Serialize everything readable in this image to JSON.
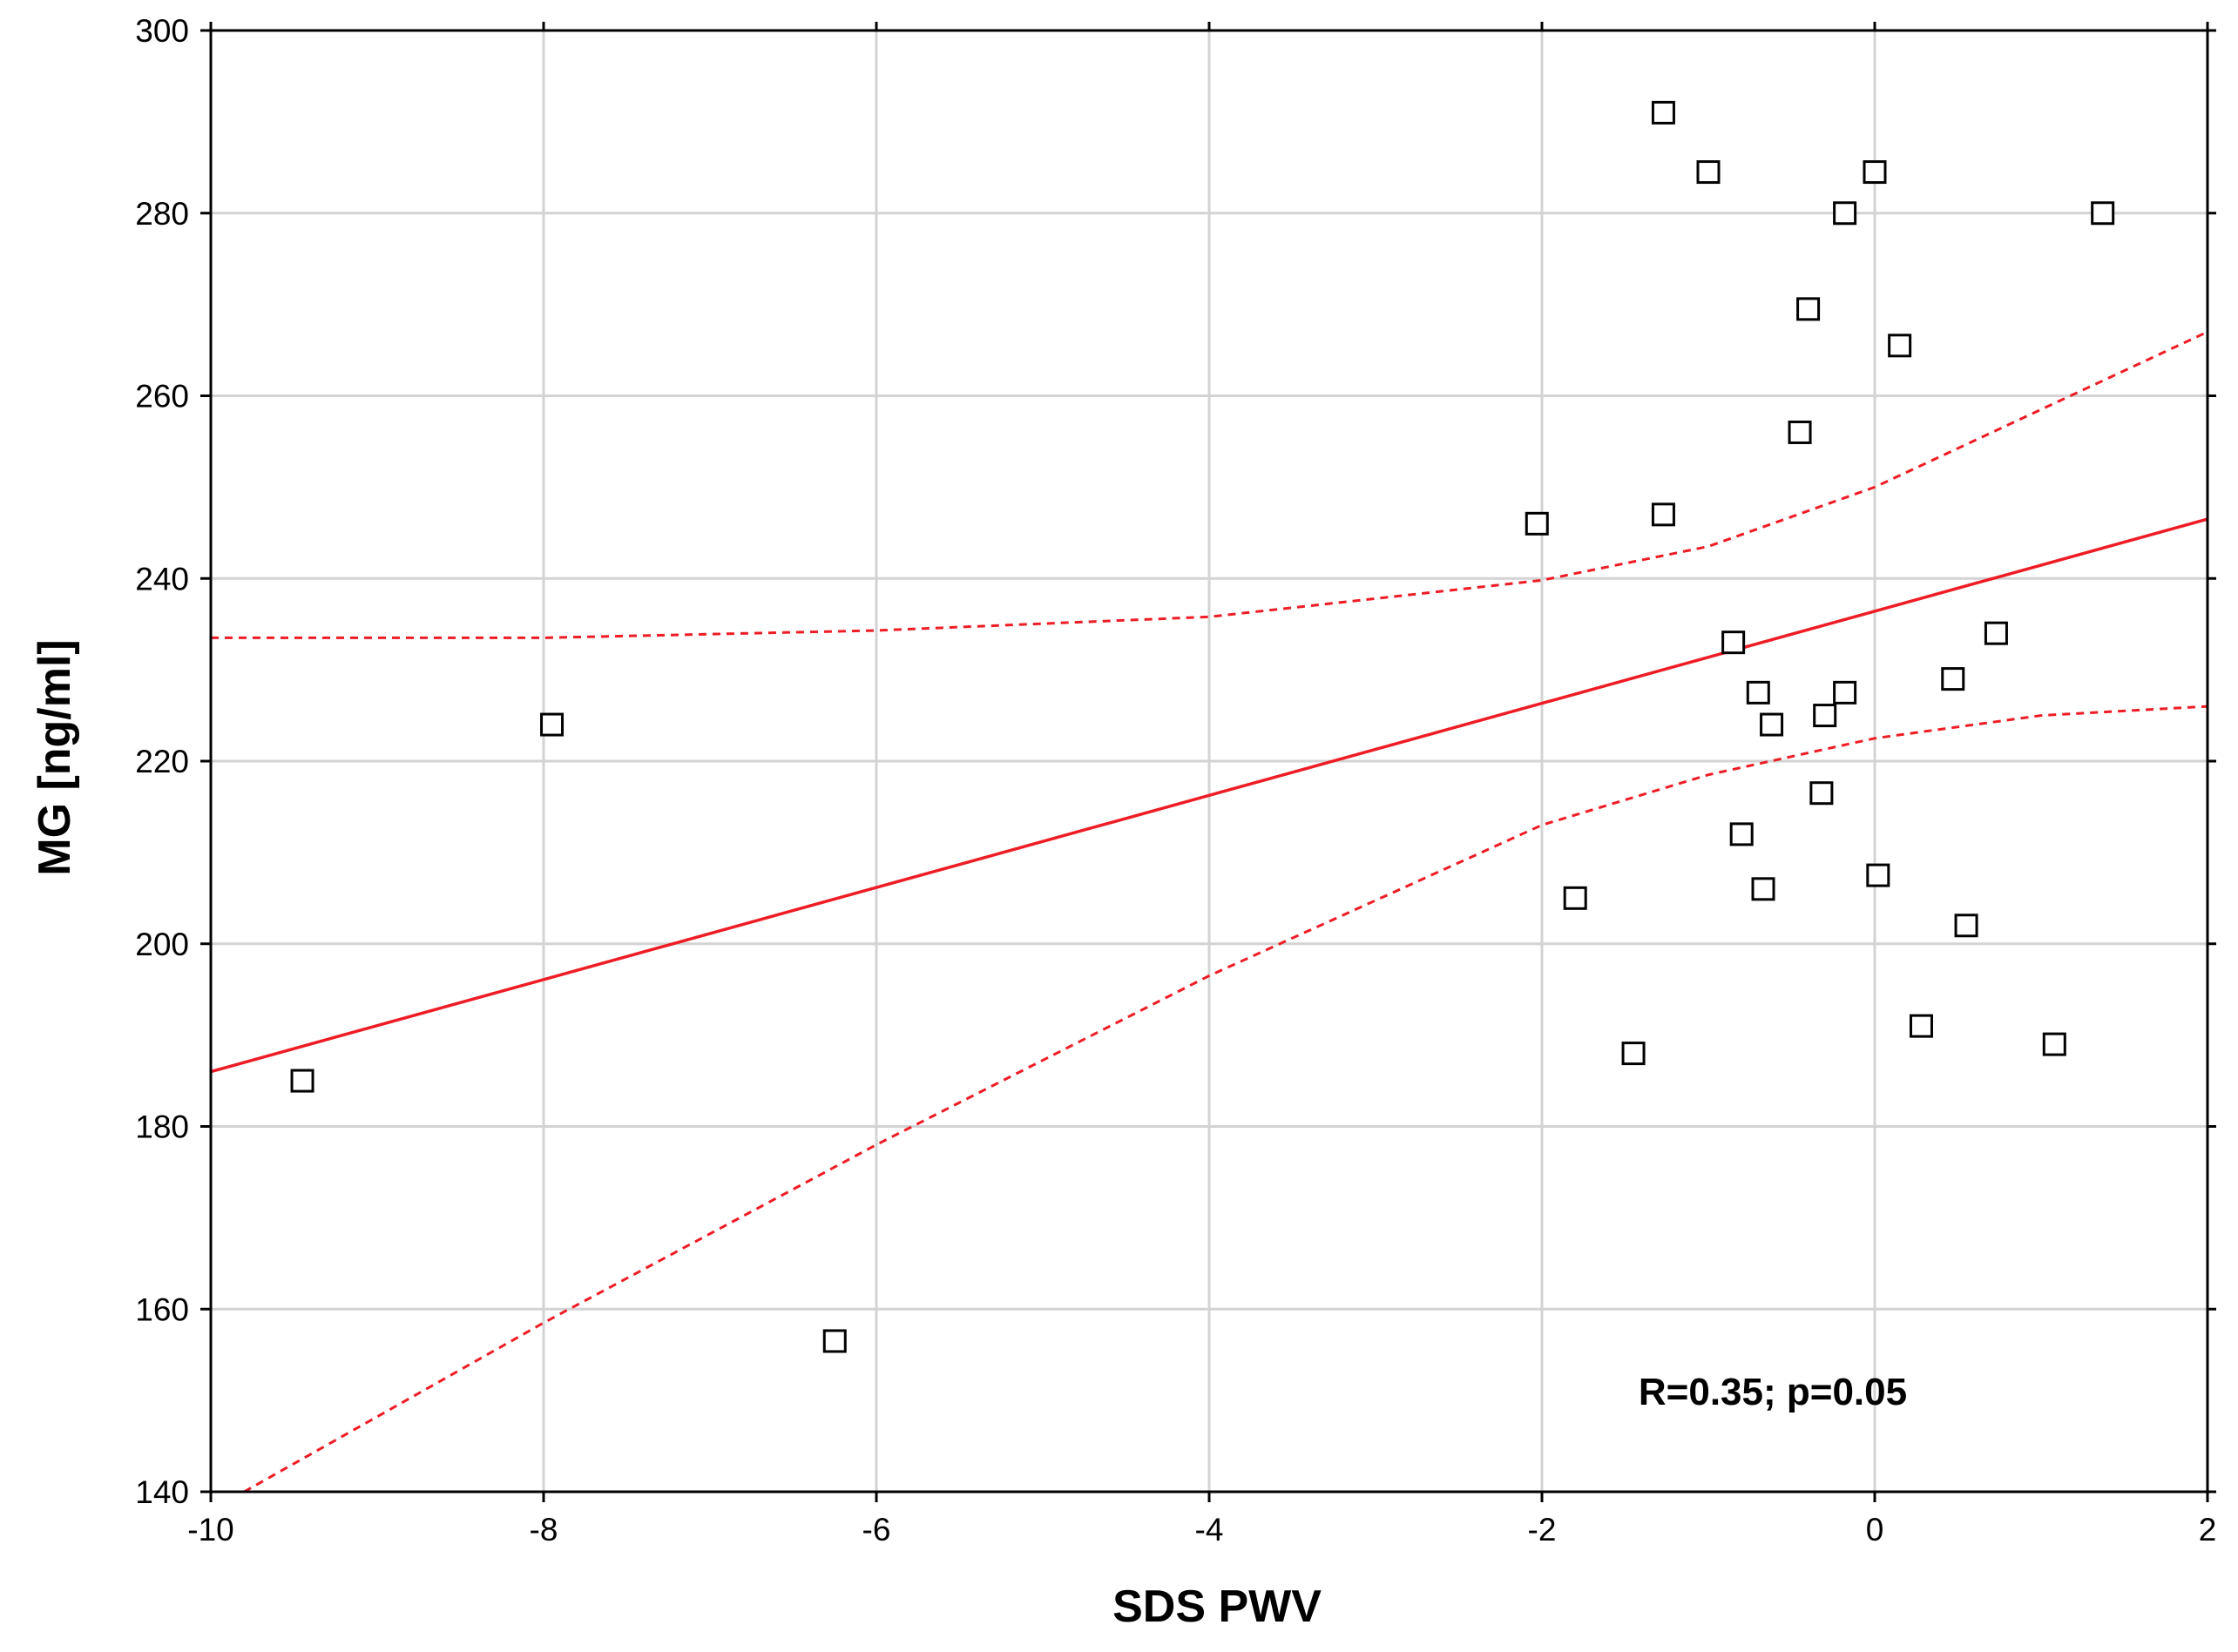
{
  "chart_data": {
    "type": "scatter",
    "title": "",
    "xlabel": "SDS PWV",
    "ylabel": "MG [ng/ml]",
    "xlim": [
      -10,
      2
    ],
    "ylim": [
      140,
      300
    ],
    "xticks": [
      -10,
      -8,
      -6,
      -4,
      -2,
      0,
      2
    ],
    "yticks": [
      140,
      160,
      180,
      200,
      220,
      240,
      260,
      280,
      300
    ],
    "xtick_labels": [
      "-10",
      "-8",
      "-6",
      "-4",
      "-2",
      "0",
      "2"
    ],
    "ytick_labels": [
      "140",
      "160",
      "180",
      "200",
      "220",
      "240",
      "260",
      "280",
      "300"
    ],
    "grid": true,
    "annotation": "R=0.35; p=0.05",
    "marker": "open-square",
    "colors": {
      "points": "#000000",
      "fit": "#ee1c25",
      "grid": "#d3d3d3",
      "axes": "#000000"
    },
    "points": [
      {
        "x": -9.45,
        "y": 185
      },
      {
        "x": -7.95,
        "y": 224
      },
      {
        "x": -6.25,
        "y": 156.5
      },
      {
        "x": -2.03,
        "y": 246
      },
      {
        "x": -1.8,
        "y": 205
      },
      {
        "x": -1.45,
        "y": 188
      },
      {
        "x": -1.27,
        "y": 291
      },
      {
        "x": -1.27,
        "y": 247
      },
      {
        "x": -1.0,
        "y": 284.5
      },
      {
        "x": -0.85,
        "y": 233
      },
      {
        "x": -0.8,
        "y": 212
      },
      {
        "x": -0.7,
        "y": 227.5
      },
      {
        "x": -0.67,
        "y": 206
      },
      {
        "x": -0.62,
        "y": 224
      },
      {
        "x": -0.45,
        "y": 256
      },
      {
        "x": -0.4,
        "y": 269.5
      },
      {
        "x": -0.32,
        "y": 216.5
      },
      {
        "x": -0.3,
        "y": 225
      },
      {
        "x": -0.18,
        "y": 280
      },
      {
        "x": -0.18,
        "y": 227.5
      },
      {
        "x": 0.0,
        "y": 284.5
      },
      {
        "x": 0.02,
        "y": 207.5
      },
      {
        "x": 0.15,
        "y": 265.5
      },
      {
        "x": 0.28,
        "y": 191
      },
      {
        "x": 0.47,
        "y": 229
      },
      {
        "x": 0.55,
        "y": 202
      },
      {
        "x": 0.73,
        "y": 234
      },
      {
        "x": 1.08,
        "y": 189
      },
      {
        "x": 1.37,
        "y": 280
      }
    ],
    "fit_line": {
      "x": [
        -10,
        2
      ],
      "y": [
        186,
        246.5
      ]
    },
    "confidence_upper": {
      "x": [
        -10,
        -8,
        -6,
        -4,
        -2,
        -1,
        0,
        1,
        2
      ],
      "y": [
        233.5,
        233.5,
        234.3,
        235.8,
        239.8,
        243.5,
        250,
        258.5,
        267
      ]
    },
    "confidence_lower": {
      "x": [
        -9.8,
        -8,
        -6,
        -4,
        -2,
        -1,
        0,
        1,
        2
      ],
      "y": [
        140,
        158.5,
        178,
        196.5,
        213,
        218.5,
        222.5,
        225,
        226
      ]
    }
  }
}
